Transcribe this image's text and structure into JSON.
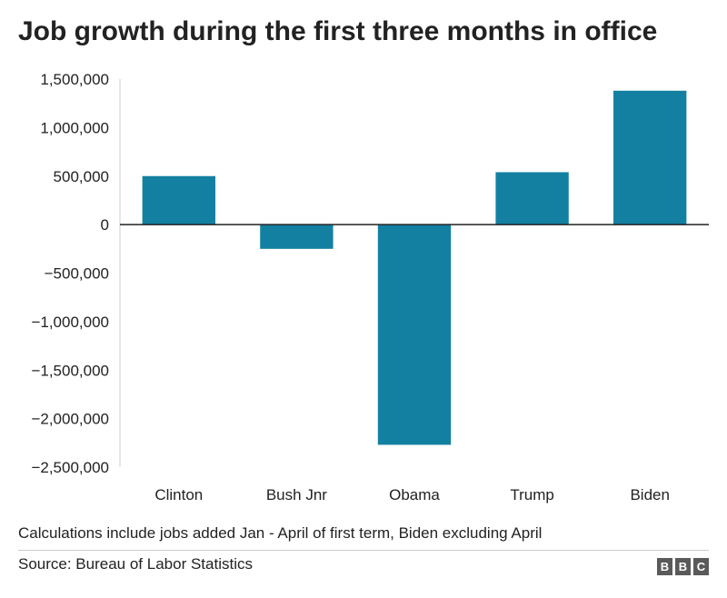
{
  "chart_data": {
    "type": "bar",
    "title": "Job growth during the first three months in office",
    "categories": [
      "Clinton",
      "Bush Jnr",
      "Obama",
      "Trump",
      "Biden"
    ],
    "values": [
      500000,
      -250000,
      -2270000,
      540000,
      1380000
    ],
    "ylim": [
      -2500000,
      1500000
    ],
    "yticks": [
      1500000,
      1000000,
      500000,
      0,
      -500000,
      -1000000,
      -1500000,
      -2000000,
      -2500000
    ],
    "ytick_labels": [
      "1,500,000",
      "1,000,000",
      "500,000",
      "0",
      "−500,000",
      "−1,000,000",
      "−1,500,000",
      "−2,000,000",
      "−2,500,000"
    ],
    "xlabel": "",
    "ylabel": "",
    "bar_color": "#1380A1",
    "grid": false
  },
  "footer": {
    "note": "Calculations include jobs added Jan - April of first term, Biden excluding April",
    "source": "Source: Bureau of Labor Statistics",
    "logo_letters": [
      "B",
      "B",
      "C"
    ]
  }
}
